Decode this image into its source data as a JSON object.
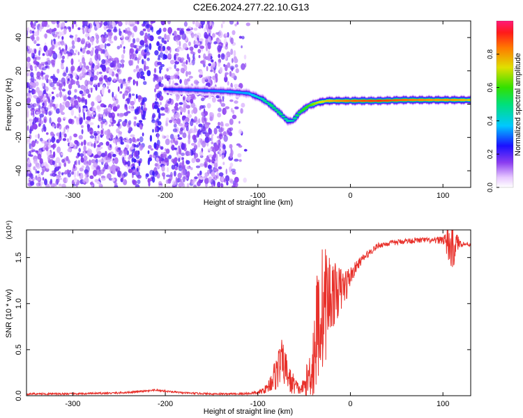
{
  "title": "C2E6.2024.277.22.10.G13",
  "chart_data": [
    {
      "type": "heatmap",
      "xlabel": "Height of straight line (km)",
      "ylabel": "Frequency (Hz)",
      "xlim": [
        -350,
        130
      ],
      "ylim": [
        -50,
        50
      ],
      "xticks": [
        -300,
        -200,
        -100,
        0,
        100
      ],
      "yticks": [
        -40,
        -20,
        0,
        20,
        40
      ],
      "colorbar": {
        "label": "Normalized spectral amplitude",
        "range": [
          0,
          1
        ],
        "ticks": [
          "0.0",
          "0.2",
          "0.4",
          "0.6",
          "0.8"
        ]
      },
      "noise_region": {
        "x": [
          -350,
          -110
        ],
        "y": [
          -50,
          50
        ],
        "amplitude_range": [
          0.05,
          0.2
        ]
      },
      "gap_band": {
        "x_top": -210,
        "x_bottom": -225
      },
      "ridge": {
        "x": [
          -200,
          -170,
          -150,
          -130,
          -110,
          -95,
          -85,
          -75,
          -68,
          -62,
          -55,
          -45,
          -35,
          -25,
          -15,
          0,
          30,
          60,
          90,
          110,
          130
        ],
        "y": [
          9,
          8.5,
          8,
          7.5,
          6.5,
          3,
          -1,
          -6,
          -10,
          -10,
          -5,
          -1,
          1,
          2,
          2,
          2,
          2,
          2.5,
          2.5,
          2.5,
          2.5
        ],
        "amplitude": [
          0.25,
          0.3,
          0.32,
          0.35,
          0.35,
          0.45,
          0.5,
          0.5,
          0.45,
          0.45,
          0.55,
          0.6,
          0.7,
          0.75,
          0.8,
          0.85,
          0.9,
          0.85,
          0.8,
          0.8,
          0.75
        ]
      }
    },
    {
      "type": "line",
      "xlabel": "Height of straight line (km)",
      "ylabel": "SNR (10 * v/v)",
      "multiplier": "(x10⁴)",
      "xlim": [
        -350,
        130
      ],
      "ylim": [
        0,
        1.8
      ],
      "xticks": [
        -300,
        -200,
        -100,
        0,
        100
      ],
      "yticks": [
        "0.0",
        "0.5",
        "1.0",
        "1.5"
      ],
      "color": "#e8302a",
      "series": [
        {
          "x": [
            -350,
            -300,
            -250,
            -220,
            -210,
            -200,
            -180,
            -150,
            -120,
            -100,
            -90,
            -80,
            -75,
            -70,
            -65,
            -60,
            -55,
            -50,
            -45,
            -40,
            -35,
            -30,
            -25,
            -20,
            -15,
            -10,
            -5,
            0,
            10,
            20,
            30,
            40,
            60,
            80,
            90,
            100,
            105,
            110,
            115,
            120,
            130
          ],
          "y": [
            0.02,
            0.02,
            0.03,
            0.05,
            0.06,
            0.05,
            0.03,
            0.02,
            0.02,
            0.03,
            0.08,
            0.25,
            0.38,
            0.3,
            0.15,
            0.12,
            0.06,
            0.1,
            0.2,
            0.4,
            0.8,
            0.95,
            1.05,
            1.1,
            1.12,
            1.15,
            1.2,
            1.3,
            1.45,
            1.55,
            1.63,
            1.65,
            1.68,
            1.69,
            1.68,
            1.7,
            1.65,
            1.6,
            1.66,
            1.65,
            1.64
          ],
          "spread": [
            0.01,
            0.01,
            0.01,
            0.01,
            0.01,
            0.01,
            0.01,
            0.01,
            0.01,
            0.02,
            0.05,
            0.2,
            0.25,
            0.2,
            0.15,
            0.1,
            0.05,
            0.1,
            0.25,
            0.5,
            0.7,
            0.7,
            0.6,
            0.4,
            0.3,
            0.25,
            0.2,
            0.1,
            0.05,
            0.04,
            0.03,
            0.03,
            0.03,
            0.03,
            0.03,
            0.05,
            0.2,
            0.3,
            0.1,
            0.03,
            0.02
          ]
        }
      ]
    }
  ]
}
